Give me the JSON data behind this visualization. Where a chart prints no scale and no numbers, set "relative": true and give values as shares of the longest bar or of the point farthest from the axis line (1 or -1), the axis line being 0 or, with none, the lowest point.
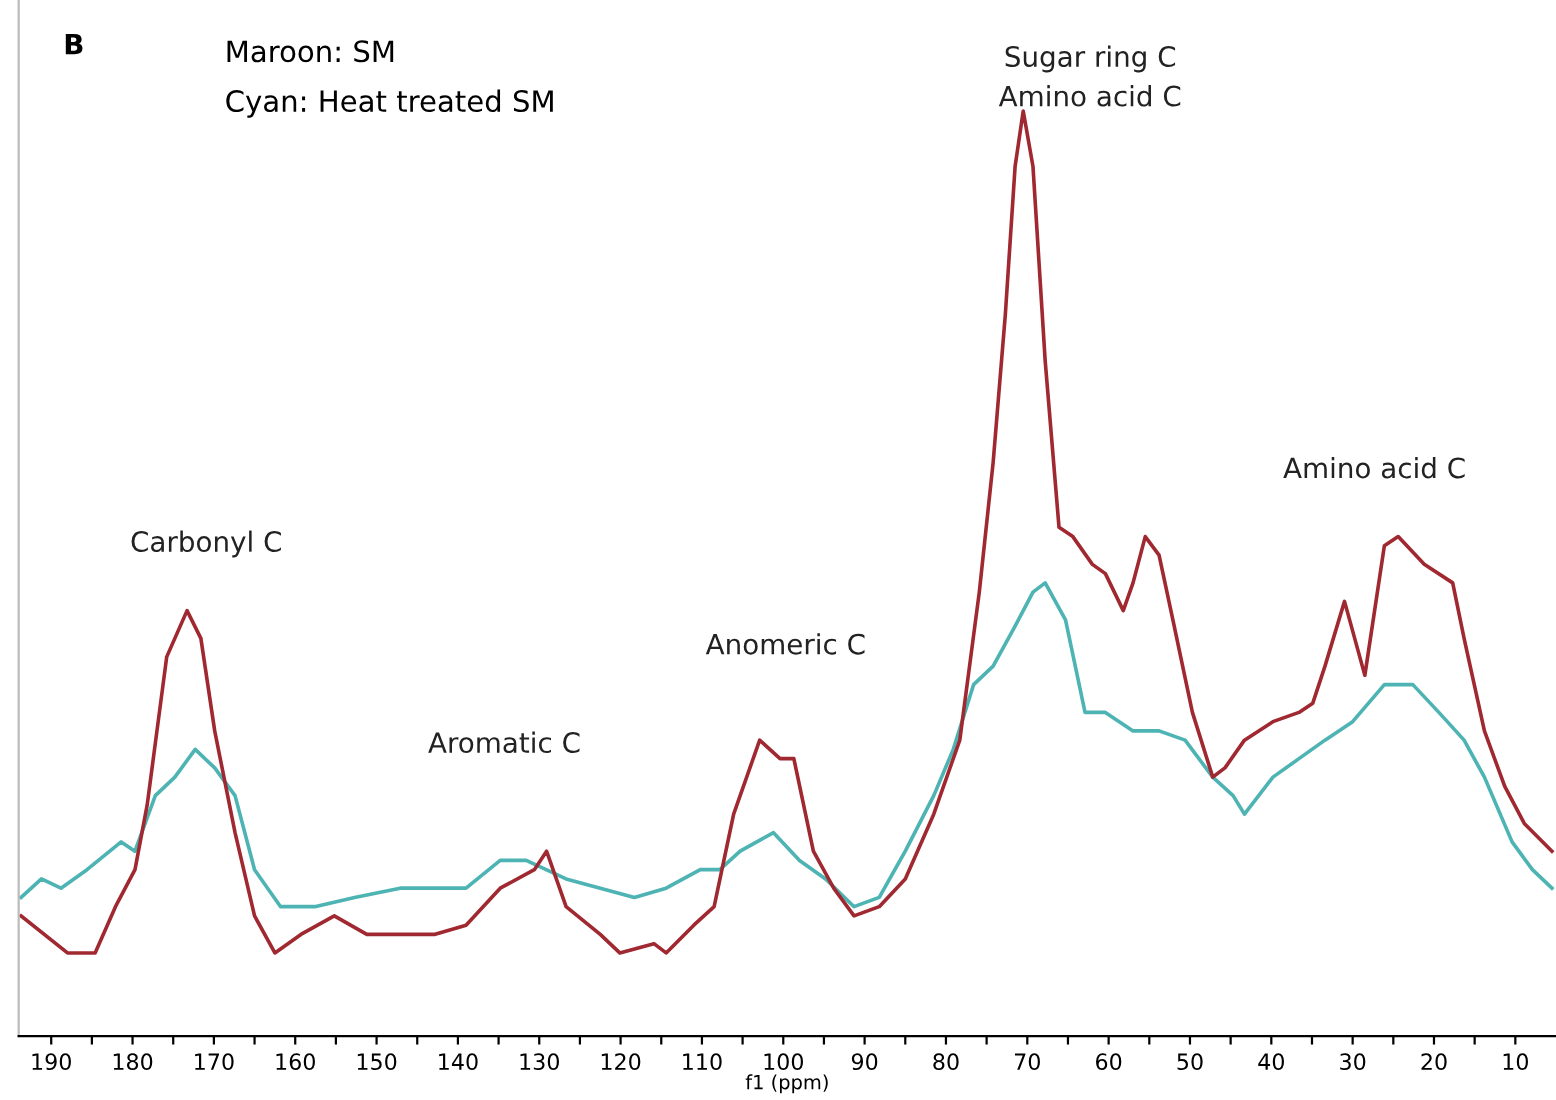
{
  "chart_data": {
    "type": "line",
    "title": "B",
    "xlabel": "f1 (ppm)",
    "relative": true,
    "grid": false,
    "legend": false,
    "marker": "none",
    "line_style": "solid",
    "xlim": [
      194,
      5
    ],
    "xticks": [
      190,
      {
        "value": 185,
        "label": null
      },
      180,
      {
        "value": 175,
        "label": null
      },
      170,
      {
        "value": 165,
        "label": null
      },
      160,
      {
        "value": 155,
        "label": null
      },
      150,
      {
        "value": 145,
        "label": null
      },
      140,
      {
        "value": 135,
        "label": null
      },
      130,
      {
        "value": 125,
        "label": null
      },
      120,
      {
        "value": 115,
        "label": null
      },
      110,
      {
        "value": 105,
        "label": null
      },
      100,
      {
        "value": 95,
        "label": null
      },
      90,
      {
        "value": 85,
        "label": null
      },
      80,
      {
        "value": 75,
        "label": null
      },
      70,
      {
        "value": 65,
        "label": null
      },
      60,
      {
        "value": 55,
        "label": null
      },
      50,
      {
        "value": 45,
        "label": null
      },
      40,
      {
        "value": 35,
        "label": null
      },
      30,
      {
        "value": 25,
        "label": null
      },
      20,
      {
        "value": 15,
        "label": null
      },
      10
    ],
    "annotations": [
      "Maroon: SM",
      "Cyan: Heat treated SM",
      "Carbonyl C",
      "Aromatic C",
      "Anomeric C",
      "Sugar ring C\nAmino acid C",
      "Amino acid C"
    ],
    "series": [
      {
        "color": "#4db3b3",
        "x": [
          193.7,
          191.2,
          188.8,
          185.6,
          181.4,
          179.7,
          177.2,
          174.8,
          172.3,
          169.9,
          167.4,
          165.0,
          161.8,
          157.6,
          152.7,
          147.1,
          142.9,
          139.0,
          134.8,
          131.6,
          126.7,
          122.5,
          118.3,
          114.4,
          110.2,
          107.8,
          105.3,
          101.2,
          98.0,
          94.8,
          91.3,
          88.2,
          85.0,
          81.5,
          79.1,
          76.6,
          74.2,
          71.7,
          69.3,
          67.8,
          65.3,
          62.9,
          60.4,
          57.0,
          53.8,
          50.6,
          47.2,
          44.7,
          43.3,
          39.8,
          36.6,
          33.4,
          30.0,
          26.1,
          22.6,
          19.4,
          16.3,
          13.8,
          10.4,
          7.9,
          5.5
        ],
        "values": [
          0.15,
          0.17,
          0.16,
          0.18,
          0.21,
          0.2,
          0.26,
          0.28,
          0.31,
          0.29,
          0.26,
          0.18,
          0.14,
          0.14,
          0.15,
          0.16,
          0.16,
          0.16,
          0.19,
          0.19,
          0.17,
          0.16,
          0.15,
          0.16,
          0.18,
          0.18,
          0.2,
          0.22,
          0.19,
          0.17,
          0.14,
          0.15,
          0.2,
          0.26,
          0.31,
          0.38,
          0.4,
          0.44,
          0.48,
          0.49,
          0.45,
          0.35,
          0.35,
          0.33,
          0.33,
          0.32,
          0.28,
          0.26,
          0.24,
          0.28,
          0.3,
          0.32,
          0.34,
          0.38,
          0.38,
          0.35,
          0.32,
          0.28,
          0.21,
          0.18,
          0.16
        ]
      },
      {
        "color": "#a02830",
        "x": [
          193.7,
          188.0,
          184.6,
          182.1,
          179.7,
          178.2,
          175.8,
          173.3,
          171.6,
          169.9,
          167.4,
          165.0,
          162.5,
          159.3,
          155.2,
          151.2,
          147.1,
          142.9,
          139.0,
          134.8,
          130.6,
          129.1,
          126.7,
          122.5,
          120.1,
          115.9,
          114.4,
          111.0,
          108.5,
          106.1,
          102.9,
          100.4,
          98.7,
          96.3,
          93.8,
          91.3,
          88.2,
          85.0,
          81.5,
          78.3,
          75.9,
          74.2,
          72.7,
          71.5,
          70.5,
          69.3,
          67.8,
          66.1,
          64.4,
          62.0,
          60.4,
          58.2,
          57.0,
          55.5,
          53.8,
          52.1,
          49.7,
          47.2,
          45.7,
          43.3,
          39.8,
          36.6,
          34.9,
          33.4,
          31.0,
          28.5,
          26.1,
          24.4,
          21.2,
          17.7,
          16.3,
          13.8,
          11.3,
          8.9,
          5.5
        ],
        "values": [
          0.13,
          0.09,
          0.09,
          0.14,
          0.18,
          0.25,
          0.41,
          0.46,
          0.43,
          0.33,
          0.22,
          0.13,
          0.09,
          0.11,
          0.13,
          0.11,
          0.11,
          0.11,
          0.12,
          0.16,
          0.18,
          0.2,
          0.14,
          0.11,
          0.09,
          0.1,
          0.09,
          0.12,
          0.14,
          0.24,
          0.32,
          0.3,
          0.3,
          0.2,
          0.16,
          0.13,
          0.14,
          0.17,
          0.24,
          0.32,
          0.48,
          0.62,
          0.78,
          0.94,
          1,
          0.94,
          0.73,
          0.55,
          0.54,
          0.51,
          0.5,
          0.46,
          0.49,
          0.54,
          0.52,
          0.45,
          0.35,
          0.28,
          0.29,
          0.32,
          0.34,
          0.35,
          0.36,
          0.4,
          0.47,
          0.39,
          0.53,
          0.54,
          0.51,
          0.49,
          0.43,
          0.33,
          0.27,
          0.23,
          0.2
        ]
      }
    ]
  }
}
